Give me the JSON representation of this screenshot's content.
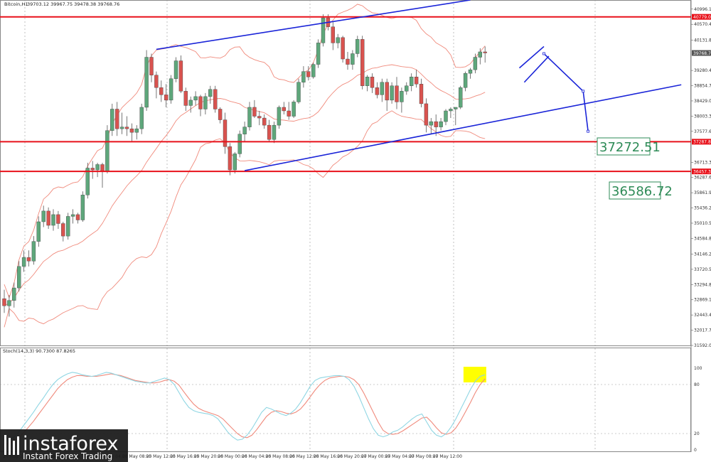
{
  "header": {
    "symbol": "Bitcoin,H1",
    "ohlc": "39703.12 39967.75 39478.38 39768.76"
  },
  "oscillator_label": "Stoch(14,3,3) 90.7300 87.8265",
  "logo": {
    "name": "instaforex",
    "tagline": "Instant Forex Trading"
  },
  "colors": {
    "bull": "#5ea77b",
    "bear": "#d9534f",
    "hline": "#e8111a",
    "trend": "#1a24d8",
    "bands": "#f08a7c",
    "stoch_main": "#8fd6e3",
    "stoch_signal": "#f08a7c",
    "highlight": "#ffff00",
    "big_label": "#2e8b57"
  },
  "chart_data": {
    "type": "candlestick",
    "price_axis": {
      "ticks": [
        "40996.16",
        "40570.40",
        "40131.80",
        "39280.40",
        "38854.70",
        "38429.00",
        "38003.30",
        "37577.60",
        "36713.30",
        "36287.60",
        "35861.90",
        "35436.20",
        "35010.50",
        "34584.80",
        "34146.20",
        "33720.50",
        "33294.80",
        "32869.10",
        "32443.40",
        "32017.70",
        "31592.00"
      ],
      "min": 31592,
      "max": 41250
    },
    "horizontal_levels": [
      {
        "value": 40779.09,
        "tag": "40779.09"
      },
      {
        "value": 37287.82,
        "tag": "37287.82"
      },
      {
        "value": 36457.33,
        "tag": "36457.33"
      }
    ],
    "last_price_tag": "39768.76",
    "annotations": [
      "37272.51",
      "36586.72"
    ],
    "time_axis": [
      "24 May 2021",
      "24 May 16:00",
      "24 May 20:00",
      "25 May 00:00",
      "25 May 04:00",
      "25 May 08:00",
      "25 May 12:00",
      "25 May 16:00",
      "25 May 20:00",
      "26 May 00:00",
      "26 May 04:00",
      "26 May 08:00",
      "26 May 12:00",
      "26 May 16:00",
      "26 May 20:00",
      "27 May 00:00",
      "27 May 04:00",
      "27 May 08:00",
      "27 May 12:00"
    ],
    "candles": [
      [
        32900,
        33150,
        32500,
        32700
      ],
      [
        32700,
        33000,
        32400,
        32850
      ],
      [
        32850,
        33350,
        32650,
        33200
      ],
      [
        33200,
        33950,
        33100,
        33800
      ],
      [
        33800,
        34250,
        33650,
        34050
      ],
      [
        34050,
        34250,
        33800,
        33950
      ],
      [
        33950,
        34650,
        33850,
        34500
      ],
      [
        34500,
        35200,
        34350,
        35050
      ],
      [
        35050,
        35500,
        34900,
        35350
      ],
      [
        35350,
        35450,
        34850,
        34950
      ],
      [
        34950,
        35400,
        34800,
        35250
      ],
      [
        35250,
        35350,
        34850,
        35000
      ],
      [
        35000,
        35050,
        34500,
        34650
      ],
      [
        34650,
        35300,
        34550,
        35200
      ],
      [
        35200,
        35400,
        35000,
        35250
      ],
      [
        35250,
        35300,
        35000,
        35100
      ],
      [
        35100,
        35900,
        35050,
        35800
      ],
      [
        35800,
        36700,
        35700,
        36550
      ],
      [
        36550,
        36750,
        36250,
        36500
      ],
      [
        36500,
        36700,
        36300,
        36650
      ],
      [
        36650,
        36700,
        36000,
        36450
      ],
      [
        36450,
        37750,
        36400,
        37600
      ],
      [
        37600,
        38350,
        37450,
        38200
      ],
      [
        38200,
        38400,
        37450,
        37650
      ],
      [
        37650,
        38100,
        37500,
        37700
      ],
      [
        37700,
        38000,
        37450,
        37650
      ],
      [
        37650,
        37800,
        37300,
        37550
      ],
      [
        37550,
        37750,
        37350,
        37650
      ],
      [
        37650,
        38350,
        37500,
        38250
      ],
      [
        38250,
        39850,
        38150,
        39650
      ],
      [
        39650,
        39750,
        38950,
        39150
      ],
      [
        39150,
        39250,
        38500,
        38800
      ],
      [
        38800,
        39000,
        38400,
        38600
      ],
      [
        38600,
        38900,
        38250,
        38450
      ],
      [
        38450,
        39150,
        38350,
        39050
      ],
      [
        39050,
        39650,
        38950,
        39550
      ],
      [
        39550,
        39700,
        38650,
        38700
      ],
      [
        38700,
        38800,
        38150,
        38300
      ],
      [
        38300,
        38550,
        38100,
        38450
      ],
      [
        38450,
        38700,
        38300,
        38550
      ],
      [
        38550,
        38600,
        38000,
        38200
      ],
      [
        38200,
        38650,
        38050,
        38550
      ],
      [
        38550,
        38850,
        38350,
        38750
      ],
      [
        38750,
        38850,
        38100,
        38200
      ],
      [
        38200,
        38250,
        37800,
        37900
      ],
      [
        37900,
        38100,
        36950,
        37150
      ],
      [
        37150,
        37250,
        36350,
        36500
      ],
      [
        36500,
        37000,
        36400,
        36950
      ],
      [
        36950,
        37600,
        36850,
        37500
      ],
      [
        37500,
        37850,
        37300,
        37700
      ],
      [
        37700,
        38400,
        37600,
        38250
      ],
      [
        38250,
        38450,
        37950,
        38000
      ],
      [
        38000,
        38150,
        37750,
        37950
      ],
      [
        37950,
        38050,
        37650,
        37750
      ],
      [
        37750,
        37900,
        37300,
        37350
      ],
      [
        37350,
        37850,
        37250,
        37750
      ],
      [
        37750,
        38300,
        37650,
        38250
      ],
      [
        38250,
        38400,
        38050,
        38150
      ],
      [
        38150,
        38400,
        37900,
        38000
      ],
      [
        38000,
        38450,
        37950,
        38400
      ],
      [
        38400,
        39050,
        38350,
        38950
      ],
      [
        38950,
        39400,
        38800,
        39250
      ],
      [
        39250,
        39400,
        39000,
        39100
      ],
      [
        39100,
        39500,
        39050,
        39450
      ],
      [
        39450,
        40150,
        39350,
        40050
      ],
      [
        40050,
        40850,
        39950,
        40750
      ],
      [
        40750,
        40850,
        40400,
        40500
      ],
      [
        40500,
        40650,
        39850,
        40050
      ],
      [
        40050,
        40300,
        39900,
        40200
      ],
      [
        40200,
        40250,
        39500,
        39600
      ],
      [
        39600,
        39800,
        39300,
        39450
      ],
      [
        39450,
        39850,
        39300,
        39750
      ],
      [
        39750,
        40250,
        39650,
        40150
      ],
      [
        40150,
        40250,
        38750,
        38850
      ],
      [
        38850,
        39150,
        38700,
        39100
      ],
      [
        39100,
        39200,
        38650,
        38800
      ],
      [
        38800,
        38950,
        38500,
        38600
      ],
      [
        38600,
        39050,
        38400,
        38950
      ],
      [
        38950,
        39050,
        38150,
        38450
      ],
      [
        38450,
        38950,
        38350,
        38850
      ],
      [
        38850,
        39100,
        38200,
        38400
      ],
      [
        38400,
        38800,
        38100,
        38700
      ],
      [
        38700,
        38950,
        38600,
        38850
      ],
      [
        38850,
        39200,
        38700,
        39100
      ],
      [
        39100,
        39300,
        38800,
        38900
      ],
      [
        38900,
        39050,
        38250,
        38350
      ],
      [
        38350,
        38500,
        37550,
        37750
      ],
      [
        37750,
        37950,
        37500,
        37850
      ],
      [
        37850,
        38050,
        37450,
        37700
      ],
      [
        37700,
        37950,
        37600,
        37850
      ],
      [
        37850,
        38200,
        37750,
        38150
      ],
      [
        38150,
        38250,
        37950,
        38200
      ],
      [
        38200,
        38250,
        37750,
        38250
      ],
      [
        38250,
        38850,
        38200,
        38800
      ],
      [
        38800,
        39250,
        38700,
        39200
      ],
      [
        39200,
        39350,
        39050,
        39300
      ],
      [
        39300,
        39750,
        39200,
        39650
      ],
      [
        39650,
        39900,
        39450,
        39800
      ],
      [
        39800,
        39950,
        39500,
        39770
      ]
    ],
    "stochastic": {
      "levels": [
        100,
        80,
        20,
        0
      ],
      "main": [
        10,
        12,
        16,
        22,
        30,
        38,
        46,
        55,
        63,
        72,
        80,
        86,
        90,
        93,
        95,
        94,
        92,
        91,
        90,
        91,
        93,
        95,
        94,
        92,
        90,
        88,
        86,
        84,
        83,
        82,
        82,
        84,
        86,
        88,
        86,
        80,
        70,
        60,
        52,
        48,
        46,
        45,
        44,
        42,
        38,
        30,
        22,
        16,
        12,
        13,
        18,
        26,
        36,
        46,
        52,
        50,
        47,
        44,
        42,
        45,
        50,
        58,
        68,
        78,
        85,
        88,
        89,
        90,
        91,
        91,
        90,
        86,
        78,
        66,
        52,
        38,
        26,
        18,
        16,
        18,
        22,
        24,
        28,
        33,
        38,
        42,
        44,
        34,
        24,
        18,
        16,
        20,
        28,
        38,
        50,
        62,
        74,
        84,
        90,
        92
      ],
      "signal": [
        6,
        8,
        11,
        15,
        21,
        28,
        35,
        43,
        51,
        59,
        67,
        75,
        81,
        86,
        89,
        91,
        91,
        90,
        90,
        90,
        91,
        92,
        93,
        92,
        91,
        89,
        87,
        85,
        84,
        83,
        82,
        82,
        83,
        85,
        86,
        84,
        79,
        71,
        63,
        56,
        51,
        48,
        46,
        44,
        42,
        38,
        32,
        26,
        20,
        16,
        15,
        18,
        25,
        33,
        41,
        46,
        48,
        47,
        45,
        44,
        46,
        50,
        57,
        65,
        73,
        80,
        85,
        88,
        89,
        90,
        90,
        89,
        86,
        80,
        70,
        58,
        46,
        34,
        24,
        20,
        19,
        20,
        23,
        27,
        31,
        35,
        39,
        40,
        34,
        27,
        21,
        19,
        21,
        27,
        36,
        47,
        58,
        70,
        80,
        87
      ]
    }
  }
}
